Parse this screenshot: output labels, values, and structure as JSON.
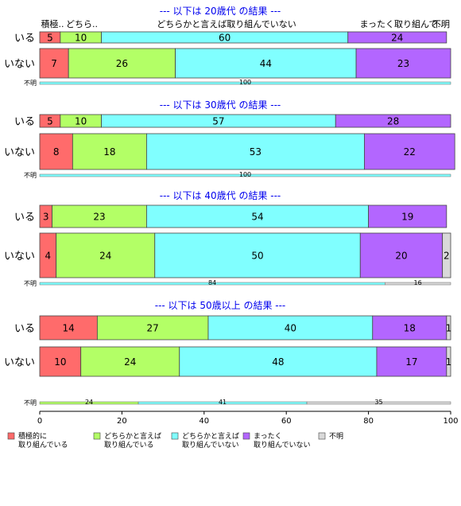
{
  "categories": [
    {
      "name": "積極的に取り組んでいる",
      "lines": [
        "積極的に",
        "取り組んでいる"
      ],
      "color": "#ff6b6b"
    },
    {
      "name": "どちらかと言えば取り組んでいる",
      "lines": [
        "どちらかと言えば",
        "取り組んでいる"
      ],
      "color": "#b3ff66"
    },
    {
      "name": "どちらかと言えば取り組んでいない",
      "lines": [
        "どちらかと言えば",
        "取り組んでいない"
      ],
      "color": "#80ffff"
    },
    {
      "name": "まったく取り組んでいない",
      "lines": [
        "まったく",
        "取り組んでいない"
      ],
      "color": "#b366ff"
    },
    {
      "name": "不明",
      "lines": [
        "不明"
      ],
      "color": "#d9d9d9"
    }
  ],
  "top_headers": [
    "積極..",
    "どちら..",
    "どちらかと言えば取り組んでいない",
    "まったく取り組んで..",
    "不明"
  ],
  "axis": {
    "min": 0,
    "max": 100,
    "ticks": [
      0,
      20,
      40,
      60,
      80,
      100
    ]
  },
  "chart_data": {
    "type": "bar",
    "orientation": "horizontal",
    "stacked": true,
    "xlim": [
      0,
      100
    ],
    "panels": [
      {
        "title": "--- 以下は 20歳代 の結果 ---",
        "rows": [
          {
            "label": "いる",
            "values": [
              5,
              10,
              60,
              24,
              0
            ]
          },
          {
            "label": "いない",
            "values": [
              7,
              26,
              44,
              23,
              0
            ]
          }
        ],
        "fumei_label": "不明",
        "fumei_values": [
          0,
          0,
          100,
          0,
          0
        ]
      },
      {
        "title": "--- 以下は 30歳代 の結果 ---",
        "rows": [
          {
            "label": "いる",
            "values": [
              5,
              10,
              57,
              28,
              0
            ]
          },
          {
            "label": "いない",
            "values": [
              8,
              18,
              53,
              22,
              0
            ]
          }
        ],
        "fumei_label": "不明",
        "fumei_values": [
          0,
          0,
          100,
          0,
          0
        ]
      },
      {
        "title": "--- 以下は 40歳代 の結果 ---",
        "rows": [
          {
            "label": "いる",
            "values": [
              3,
              23,
              54,
              19,
              0
            ]
          },
          {
            "label": "いない",
            "values": [
              4,
              24,
              50,
              20,
              2
            ]
          }
        ],
        "fumei_label": "不明",
        "fumei_values": [
          0,
          0,
          84,
          0,
          16
        ]
      },
      {
        "title": "--- 以下は 50歳以上 の結果 ---",
        "rows": [
          {
            "label": "いる",
            "values": [
              14,
              27,
              40,
              18,
              1
            ]
          },
          {
            "label": "いない",
            "values": [
              10,
              24,
              48,
              17,
              1
            ]
          }
        ],
        "fumei_label": "不明",
        "fumei_values": [
          0,
          24,
          41,
          0,
          35
        ]
      }
    ]
  }
}
